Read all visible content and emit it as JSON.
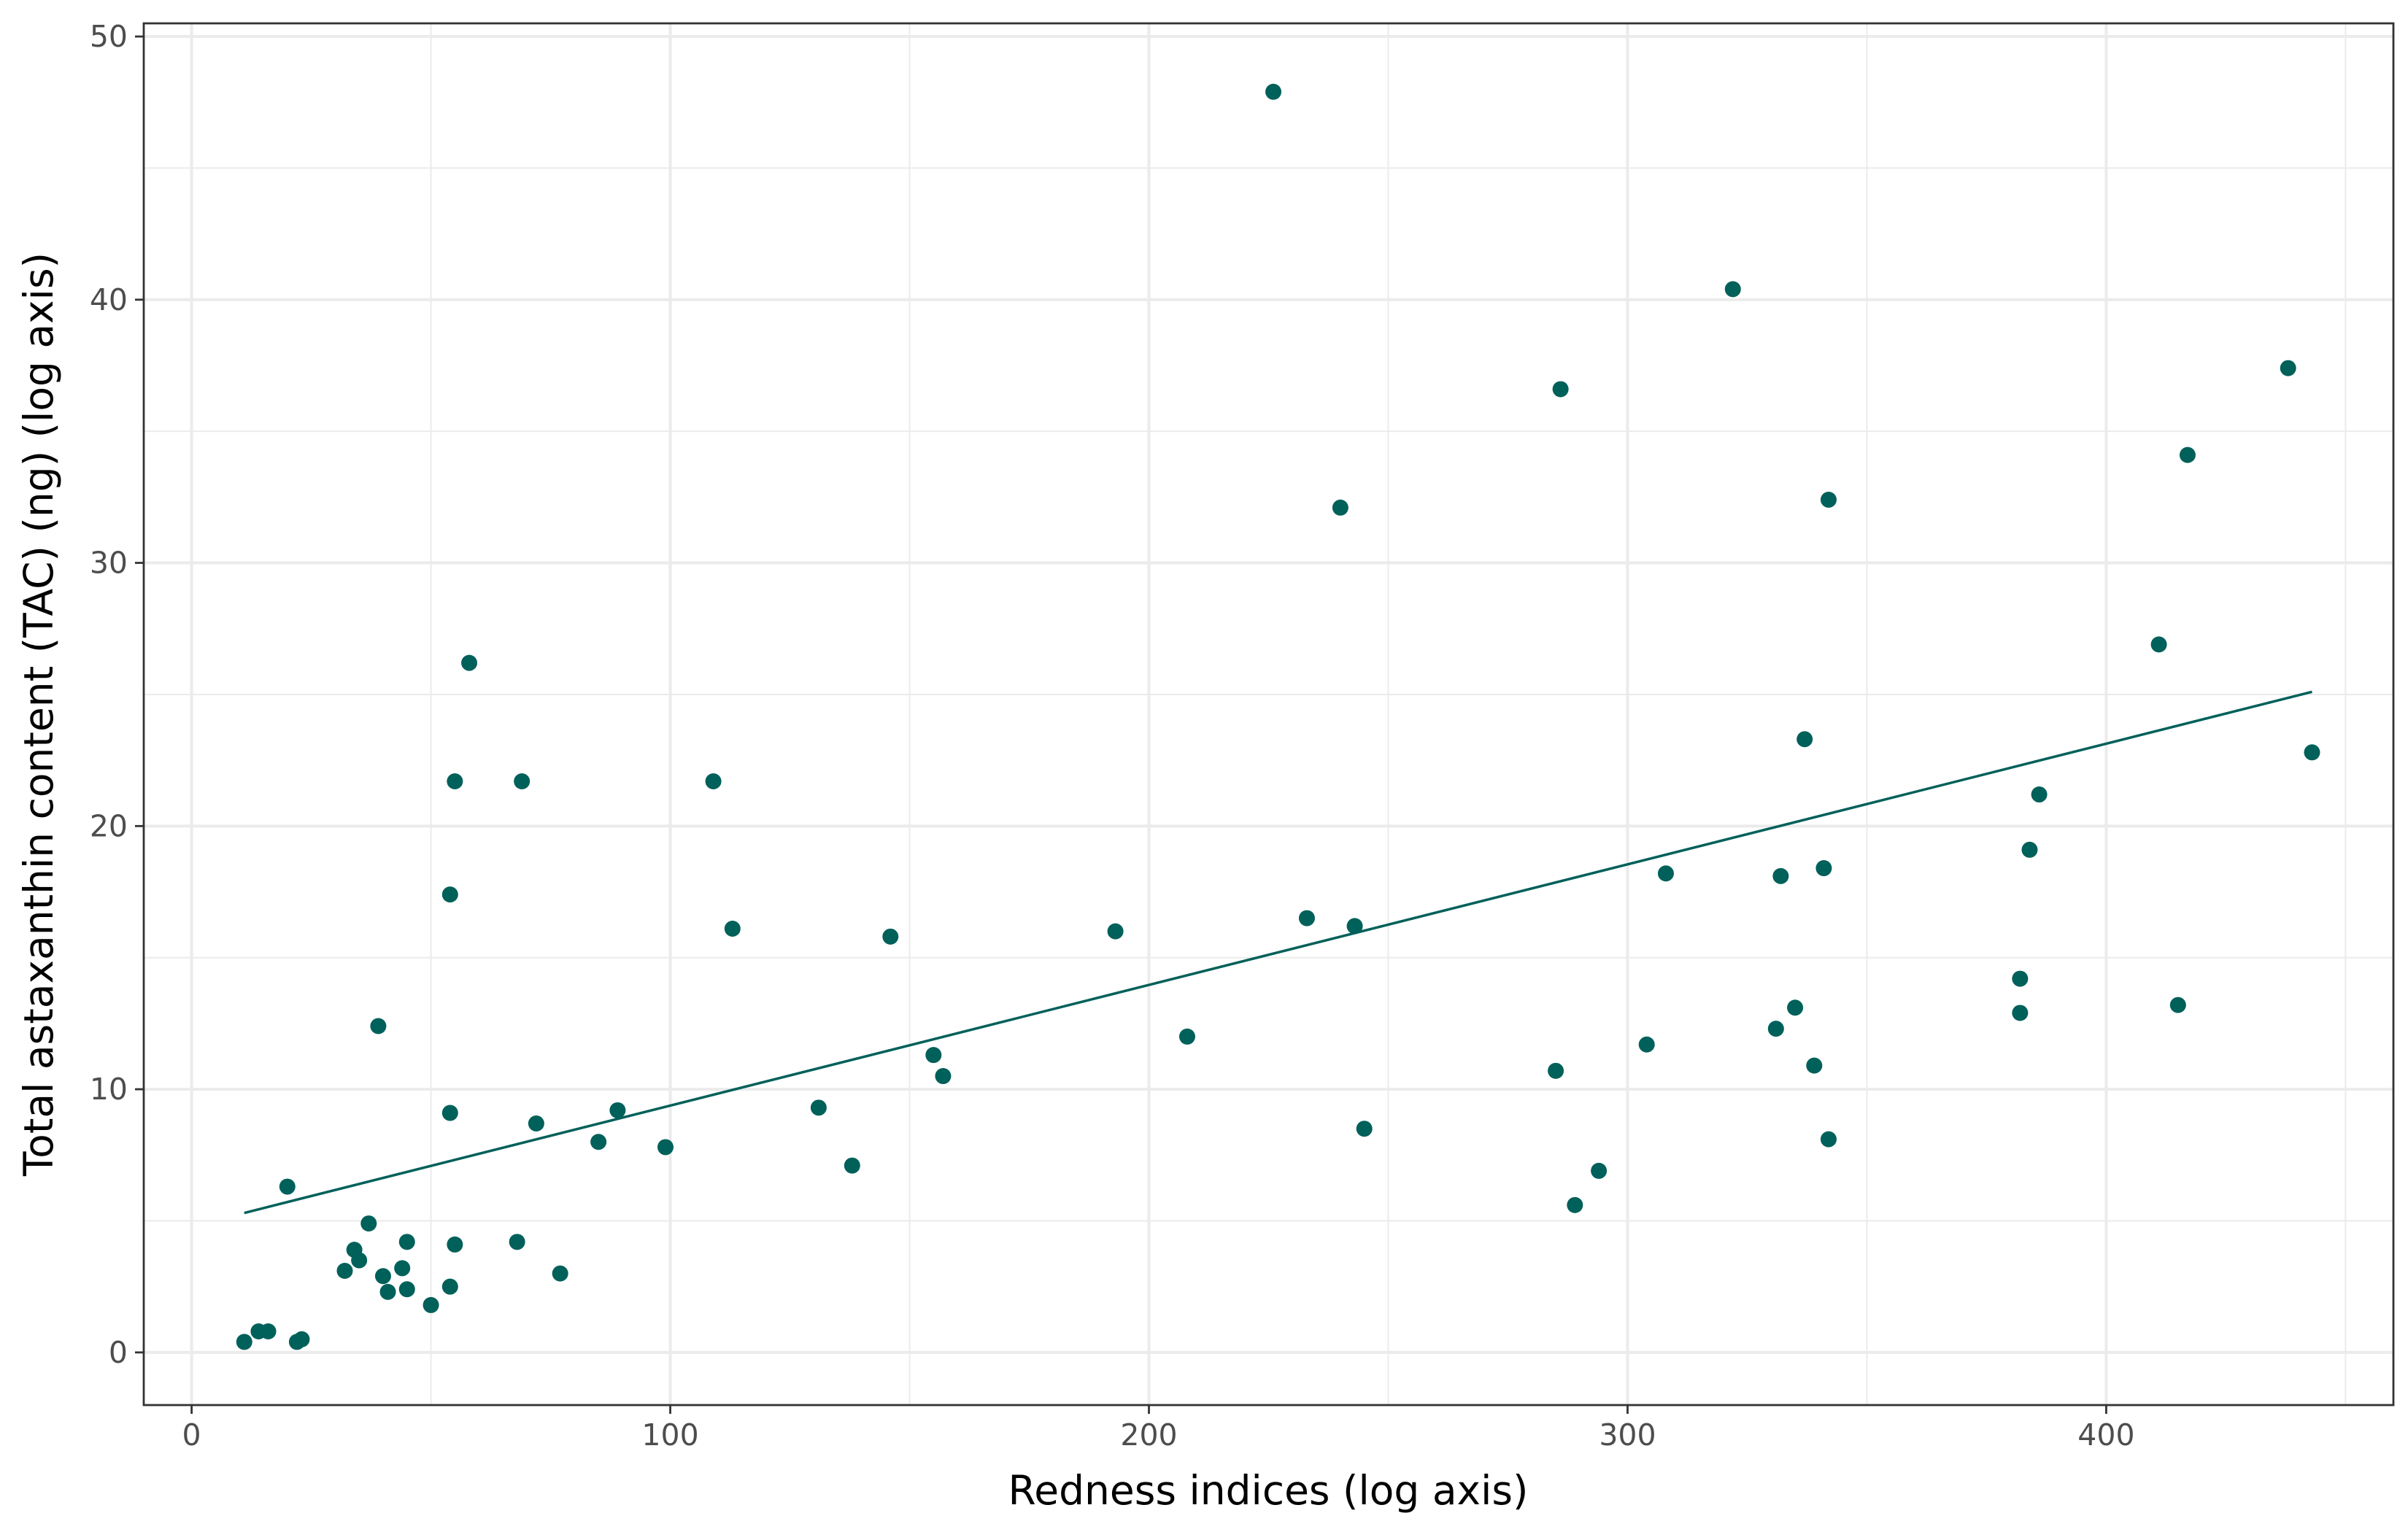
{
  "chart_data": {
    "type": "scatter",
    "title": "",
    "xlabel": "Redness indices (log axis)",
    "ylabel": "Total astaxanthin content (TAC) (ng) (log axis)",
    "xlim": [
      -10,
      460
    ],
    "ylim": [
      -2,
      50.5
    ],
    "x_ticks": [
      0,
      100,
      200,
      300,
      400
    ],
    "x_minor_ticks": [
      50,
      150,
      250,
      350,
      450
    ],
    "y_ticks": [
      0,
      10,
      20,
      30,
      40,
      50
    ],
    "y_minor_ticks": [
      5,
      15,
      25,
      35,
      45
    ],
    "grid": true,
    "legend": "none",
    "point_color": "#00605a",
    "line_color": "#00605a",
    "points": [
      [
        11,
        0.4
      ],
      [
        14,
        0.8
      ],
      [
        16,
        0.8
      ],
      [
        20,
        6.3
      ],
      [
        22,
        0.4
      ],
      [
        23,
        0.5
      ],
      [
        32,
        3.1
      ],
      [
        34,
        3.9
      ],
      [
        35,
        3.5
      ],
      [
        37,
        4.9
      ],
      [
        39,
        12.4
      ],
      [
        40,
        2.9
      ],
      [
        41,
        2.3
      ],
      [
        44,
        3.2
      ],
      [
        45,
        4.2
      ],
      [
        45,
        2.4
      ],
      [
        50,
        1.8
      ],
      [
        54,
        2.5
      ],
      [
        54,
        17.4
      ],
      [
        54,
        9.1
      ],
      [
        55,
        21.7
      ],
      [
        55,
        4.1
      ],
      [
        58,
        26.2
      ],
      [
        68,
        4.2
      ],
      [
        69,
        21.7
      ],
      [
        72,
        8.7
      ],
      [
        77,
        3.0
      ],
      [
        85,
        8.0
      ],
      [
        89,
        9.2
      ],
      [
        99,
        7.8
      ],
      [
        109,
        21.7
      ],
      [
        113,
        16.1
      ],
      [
        131,
        9.3
      ],
      [
        138,
        7.1
      ],
      [
        146,
        15.8
      ],
      [
        155,
        11.3
      ],
      [
        157,
        10.5
      ],
      [
        193,
        16.0
      ],
      [
        208,
        12.0
      ],
      [
        226,
        47.9
      ],
      [
        233,
        16.5
      ],
      [
        240,
        32.1
      ],
      [
        243,
        16.2
      ],
      [
        245,
        8.5
      ],
      [
        285,
        10.7
      ],
      [
        286,
        36.6
      ],
      [
        289,
        5.6
      ],
      [
        294,
        6.9
      ],
      [
        304,
        11.7
      ],
      [
        308,
        18.2
      ],
      [
        322,
        40.4
      ],
      [
        331,
        12.3
      ],
      [
        332,
        18.1
      ],
      [
        335,
        13.1
      ],
      [
        337,
        23.3
      ],
      [
        339,
        10.9
      ],
      [
        341,
        18.4
      ],
      [
        342,
        32.4
      ],
      [
        342,
        8.1
      ],
      [
        382,
        14.2
      ],
      [
        382,
        12.9
      ],
      [
        384,
        19.1
      ],
      [
        386,
        21.2
      ],
      [
        411,
        26.9
      ],
      [
        415,
        13.2
      ],
      [
        417,
        34.1
      ],
      [
        438,
        37.4
      ],
      [
        443,
        22.8
      ]
    ],
    "fit_line": {
      "x": [
        11,
        443
      ],
      "y": [
        5.3,
        25.1
      ]
    }
  }
}
